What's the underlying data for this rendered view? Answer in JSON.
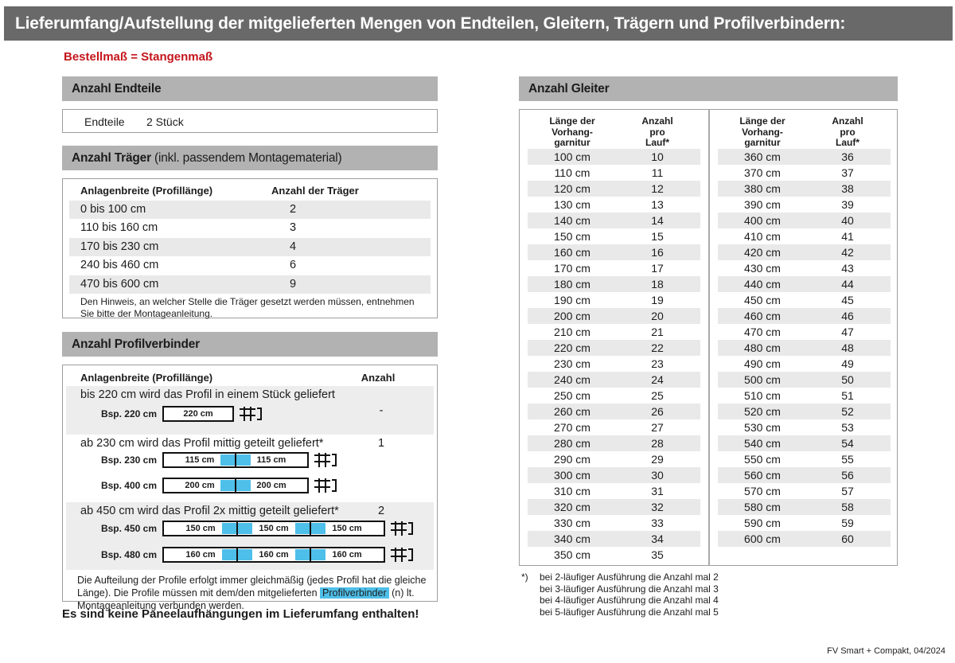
{
  "title": "Lieferumfang/Aufstellung der mitgelieferten Mengen von Endteilen, Gleitern, Trägern und Profilverbindern:",
  "subtitle": "Bestellmaß = Stangenmaß",
  "colors": {
    "banner_bg": "#696969",
    "section_header_bg": "#b2b2b2",
    "row_stripe": "#e9e9e9",
    "group_gray": "#ededed",
    "accent_red": "#c3161c",
    "connector_blue": "#4ebfe9"
  },
  "endteile": {
    "header": "Anzahl Endteile",
    "label": "Endteile",
    "value": "2 Stück"
  },
  "traeger": {
    "header": "Anzahl Träger",
    "header_suffix": " (inkl. passendem Montagematerial)",
    "col_width": "Anlagenbreite (Profillänge)",
    "col_count": "Anzahl der Träger",
    "rows": [
      {
        "range": "0 bis 100 cm",
        "count": "2"
      },
      {
        "range": "110 bis 160 cm",
        "count": "3"
      },
      {
        "range": "170 bis 230 cm",
        "count": "4"
      },
      {
        "range": "240 bis 460 cm",
        "count": "6"
      },
      {
        "range": "470 bis 600 cm",
        "count": "9"
      }
    ],
    "note": "Den Hinweis, an welcher Stelle die Träger gesetzt werden müssen, entnehmen Sie bitte der Montageanleitung."
  },
  "profilverbinder": {
    "header": "Anzahl Profilverbinder",
    "col_width": "Anlagenbreite (Profillänge)",
    "col_count": "Anzahl",
    "groups": [
      {
        "text": "bis 220 cm wird das Profil in einem Stück geliefert",
        "count": "-",
        "examples": [
          {
            "label": "Bsp. 220 cm",
            "segments": [
              "220 cm"
            ]
          }
        ]
      },
      {
        "text": "ab 230 cm wird das Profil mittig geteilt geliefert*",
        "count": "1",
        "examples": [
          {
            "label": "Bsp. 230 cm",
            "segments": [
              "115 cm",
              "115 cm"
            ]
          },
          {
            "label": "Bsp. 400 cm",
            "segments": [
              "200 cm",
              "200 cm"
            ]
          }
        ]
      },
      {
        "text": "ab 450 cm wird das Profil 2x mittig geteilt geliefert*",
        "count": "2",
        "examples": [
          {
            "label": "Bsp. 450 cm",
            "segments": [
              "150 cm",
              "150 cm",
              "150 cm"
            ]
          },
          {
            "label": "Bsp. 480 cm",
            "segments": [
              "160 cm",
              "160 cm",
              "160 cm"
            ]
          }
        ]
      }
    ],
    "note": {
      "before": "Die Aufteilung der Profile erfolgt immer gleichmäßig (jedes Profil hat die gleiche Länge). Die Profile müssen mit dem/den mitgelieferten ",
      "highlight": "Profilverbinder",
      "after": " (n) lt. Montageanleitung verbunden werden."
    }
  },
  "no_panel_note": "Es sind keine Paneelaufhängungen im Lieferumfang enthalten!",
  "gleiter": {
    "header": "Anzahl Gleiter",
    "col_length_lines": [
      "Länge der",
      "Vorhang-",
      "garnitur"
    ],
    "col_count_lines": [
      "Anzahl",
      "pro",
      "Lauf*"
    ],
    "left_rows": [
      {
        "length": "100 cm",
        "count": "10"
      },
      {
        "length": "110 cm",
        "count": "11"
      },
      {
        "length": "120 cm",
        "count": "12"
      },
      {
        "length": "130 cm",
        "count": "13"
      },
      {
        "length": "140 cm",
        "count": "14"
      },
      {
        "length": "150 cm",
        "count": "15"
      },
      {
        "length": "160 cm",
        "count": "16"
      },
      {
        "length": "170 cm",
        "count": "17"
      },
      {
        "length": "180 cm",
        "count": "18"
      },
      {
        "length": "190 cm",
        "count": "19"
      },
      {
        "length": "200 cm",
        "count": "20"
      },
      {
        "length": "210 cm",
        "count": "21"
      },
      {
        "length": "220 cm",
        "count": "22"
      },
      {
        "length": "230 cm",
        "count": "23"
      },
      {
        "length": "240 cm",
        "count": "24"
      },
      {
        "length": "250 cm",
        "count": "25"
      },
      {
        "length": "260 cm",
        "count": "26"
      },
      {
        "length": "270 cm",
        "count": "27"
      },
      {
        "length": "280 cm",
        "count": "28"
      },
      {
        "length": "290 cm",
        "count": "29"
      },
      {
        "length": "300 cm",
        "count": "30"
      },
      {
        "length": "310 cm",
        "count": "31"
      },
      {
        "length": "320 cm",
        "count": "32"
      },
      {
        "length": "330 cm",
        "count": "33"
      },
      {
        "length": "340 cm",
        "count": "34"
      },
      {
        "length": "350 cm",
        "count": "35"
      }
    ],
    "right_rows": [
      {
        "length": "360 cm",
        "count": "36"
      },
      {
        "length": "370 cm",
        "count": "37"
      },
      {
        "length": "380 cm",
        "count": "38"
      },
      {
        "length": "390 cm",
        "count": "39"
      },
      {
        "length": "400 cm",
        "count": "40"
      },
      {
        "length": "410 cm",
        "count": "41"
      },
      {
        "length": "420 cm",
        "count": "42"
      },
      {
        "length": "430 cm",
        "count": "43"
      },
      {
        "length": "440 cm",
        "count": "44"
      },
      {
        "length": "450 cm",
        "count": "45"
      },
      {
        "length": "460 cm",
        "count": "46"
      },
      {
        "length": "470 cm",
        "count": "47"
      },
      {
        "length": "480 cm",
        "count": "48"
      },
      {
        "length": "490 cm",
        "count": "49"
      },
      {
        "length": "500 cm",
        "count": "50"
      },
      {
        "length": "510 cm",
        "count": "51"
      },
      {
        "length": "520 cm",
        "count": "52"
      },
      {
        "length": "530 cm",
        "count": "53"
      },
      {
        "length": "540 cm",
        "count": "54"
      },
      {
        "length": "550 cm",
        "count": "55"
      },
      {
        "length": "560 cm",
        "count": "56"
      },
      {
        "length": "570 cm",
        "count": "57"
      },
      {
        "length": "580 cm",
        "count": "58"
      },
      {
        "length": "590 cm",
        "count": "59"
      },
      {
        "length": "600 cm",
        "count": "60"
      }
    ]
  },
  "footnotes": {
    "marker": "*)",
    "lines": [
      "bei 2-läufiger Ausführung die Anzahl mal 2",
      "bei 3-läufiger Ausführung die Anzahl mal 3",
      "bei 4-läufiger Ausführung die Anzahl mal 4",
      "bei 5-läufiger Ausführung die Anzahl mal 5"
    ]
  },
  "footer": "FV Smart + Compakt, 04/2024"
}
